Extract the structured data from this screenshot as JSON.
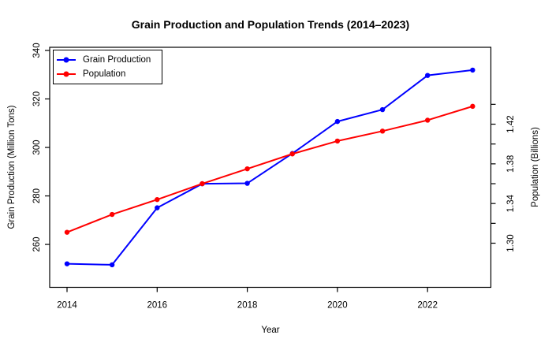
{
  "chart_data": {
    "type": "line",
    "title": "Grain Production and Population Trends (2014–2023)",
    "xlabel": "Year",
    "ylabel_left": "Grain Production (Million Tons)",
    "ylabel_right": "Population (Billions)",
    "x": [
      2014,
      2015,
      2016,
      2017,
      2018,
      2019,
      2020,
      2021,
      2022,
      2023
    ],
    "series": [
      {
        "name": "Grain Production",
        "axis": "left",
        "color": "#0000ff",
        "values": [
          252.0,
          251.6,
          275.1,
          285.0,
          285.2,
          297.5,
          310.7,
          315.6,
          329.7,
          331.9
        ]
      },
      {
        "name": "Population",
        "axis": "right",
        "color": "#ff0000",
        "values": [
          1.311,
          1.329,
          1.344,
          1.36,
          1.375,
          1.39,
          1.403,
          1.413,
          1.424,
          1.438
        ]
      }
    ],
    "xlim": [
      2013.615,
      2023.405
    ],
    "ylim_left": [
      242.3,
      341.3
    ],
    "ylim_right": [
      1.2555,
      1.4975
    ],
    "xticks": {
      "values": [
        2014,
        2016,
        2018,
        2020,
        2022
      ],
      "labels": [
        "2014",
        "2016",
        "2018",
        "2020",
        "2022"
      ]
    },
    "yticks_left": {
      "values": [
        260,
        280,
        300,
        320,
        340
      ],
      "labels": [
        "260",
        "280",
        "300",
        "320",
        "340"
      ]
    },
    "yticks_right": {
      "values": [
        1.3,
        1.32,
        1.34,
        1.36,
        1.38,
        1.4,
        1.42,
        1.44
      ],
      "labels": [
        "1.30",
        "",
        "1.34",
        "",
        "1.38",
        "",
        "1.42",
        ""
      ]
    },
    "grid": "off",
    "legend_position": "top-left",
    "axis_color": "#000000",
    "background_color": "#ffffff"
  }
}
